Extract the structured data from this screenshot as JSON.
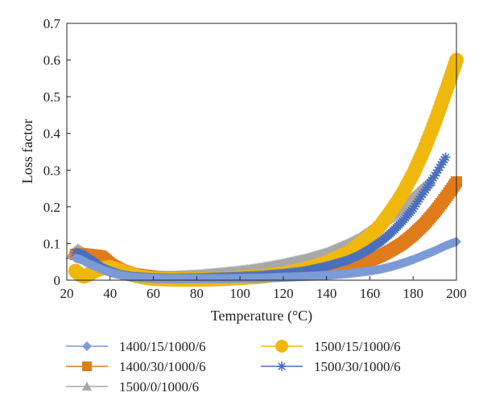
{
  "chart_data": {
    "type": "scatter",
    "xlabel": "Temperature (°C)",
    "ylabel": "Loss factor",
    "xlim": [
      20,
      200
    ],
    "ylim": [
      0,
      0.7
    ],
    "xticks": [
      "20",
      "40",
      "60",
      "80",
      "100",
      "120",
      "140",
      "160",
      "180",
      "200"
    ],
    "yticks": [
      "0",
      "0.1",
      "0.2",
      "0.3",
      "0.4",
      "0.5",
      "0.6",
      "0.7"
    ],
    "grid": false,
    "legend_position": "bottom",
    "series": [
      {
        "name": "1500/0/1000/6",
        "color": "#a8a8a8",
        "marker": "triangle",
        "x": [
          22,
          25,
          28,
          32,
          36,
          40,
          45,
          50,
          55,
          60,
          70,
          80,
          90,
          100,
          110,
          120,
          130,
          140,
          150,
          155,
          160,
          165,
          170,
          175,
          180,
          185,
          188
        ],
        "y": [
          0.07,
          0.085,
          0.075,
          0.06,
          0.04,
          0.028,
          0.02,
          0.015,
          0.012,
          0.011,
          0.012,
          0.015,
          0.02,
          0.026,
          0.034,
          0.045,
          0.058,
          0.075,
          0.1,
          0.115,
          0.135,
          0.155,
          0.175,
          0.2,
          0.228,
          0.255,
          0.27
        ]
      },
      {
        "name": "1400/30/1000/6",
        "color": "#e07b1a",
        "marker": "square",
        "x": [
          24,
          27,
          30,
          33,
          36,
          38,
          40,
          45,
          50,
          60,
          70,
          80,
          90,
          100,
          110,
          120,
          130,
          140,
          150,
          155,
          160,
          165,
          170,
          175,
          180,
          185,
          190,
          195,
          198,
          200
        ],
        "y": [
          0.07,
          0.072,
          0.07,
          0.068,
          0.065,
          0.055,
          0.045,
          0.028,
          0.018,
          0.01,
          0.007,
          0.006,
          0.006,
          0.007,
          0.009,
          0.012,
          0.017,
          0.025,
          0.036,
          0.044,
          0.054,
          0.066,
          0.082,
          0.1,
          0.124,
          0.152,
          0.186,
          0.225,
          0.25,
          0.268
        ]
      },
      {
        "name": "1500/15/1000/6",
        "color": "#f0b80d",
        "marker": "circle",
        "x": [
          24,
          26,
          28,
          30,
          33,
          36,
          40,
          45,
          50,
          55,
          60,
          70,
          80,
          90,
          100,
          110,
          120,
          130,
          140,
          150,
          160,
          165,
          170,
          175,
          180,
          185,
          190,
          193,
          196,
          198,
          200
        ],
        "y": [
          0.025,
          0.015,
          0.01,
          0.015,
          0.025,
          0.032,
          0.035,
          0.025,
          0.015,
          0.008,
          0.004,
          0.002,
          0.002,
          0.003,
          0.006,
          0.01,
          0.018,
          0.03,
          0.048,
          0.075,
          0.12,
          0.15,
          0.19,
          0.235,
          0.29,
          0.355,
          0.43,
          0.48,
          0.53,
          0.565,
          0.6
        ]
      },
      {
        "name": "1500/30/1000/6",
        "color": "#4a6fbf",
        "marker": "star",
        "x": [
          24,
          27,
          30,
          33,
          36,
          40,
          45,
          50,
          60,
          70,
          80,
          90,
          100,
          110,
          120,
          130,
          140,
          150,
          155,
          160,
          165,
          170,
          175,
          180,
          185,
          190,
          193,
          195
        ],
        "y": [
          0.075,
          0.072,
          0.06,
          0.048,
          0.035,
          0.025,
          0.015,
          0.01,
          0.006,
          0.005,
          0.006,
          0.008,
          0.01,
          0.013,
          0.018,
          0.025,
          0.038,
          0.055,
          0.068,
          0.085,
          0.105,
          0.13,
          0.16,
          0.195,
          0.24,
          0.285,
          0.315,
          0.335
        ]
      },
      {
        "name": "1400/15/1000/6",
        "color": "#7b9bd6",
        "marker": "diamond",
        "x": [
          24,
          27,
          30,
          34,
          38,
          42,
          46,
          50,
          60,
          70,
          80,
          90,
          100,
          110,
          120,
          130,
          140,
          150,
          160,
          165,
          170,
          175,
          180,
          185,
          190,
          195,
          200
        ],
        "y": [
          0.06,
          0.055,
          0.045,
          0.035,
          0.025,
          0.018,
          0.012,
          0.008,
          0.005,
          0.004,
          0.004,
          0.004,
          0.005,
          0.006,
          0.008,
          0.01,
          0.013,
          0.018,
          0.025,
          0.03,
          0.037,
          0.046,
          0.056,
          0.068,
          0.08,
          0.094,
          0.105
        ]
      }
    ],
    "legend_order": [
      "1400/15/1000/6",
      "1500/15/1000/6",
      "1400/30/1000/6",
      "1500/30/1000/6",
      "1500/0/1000/6"
    ]
  }
}
